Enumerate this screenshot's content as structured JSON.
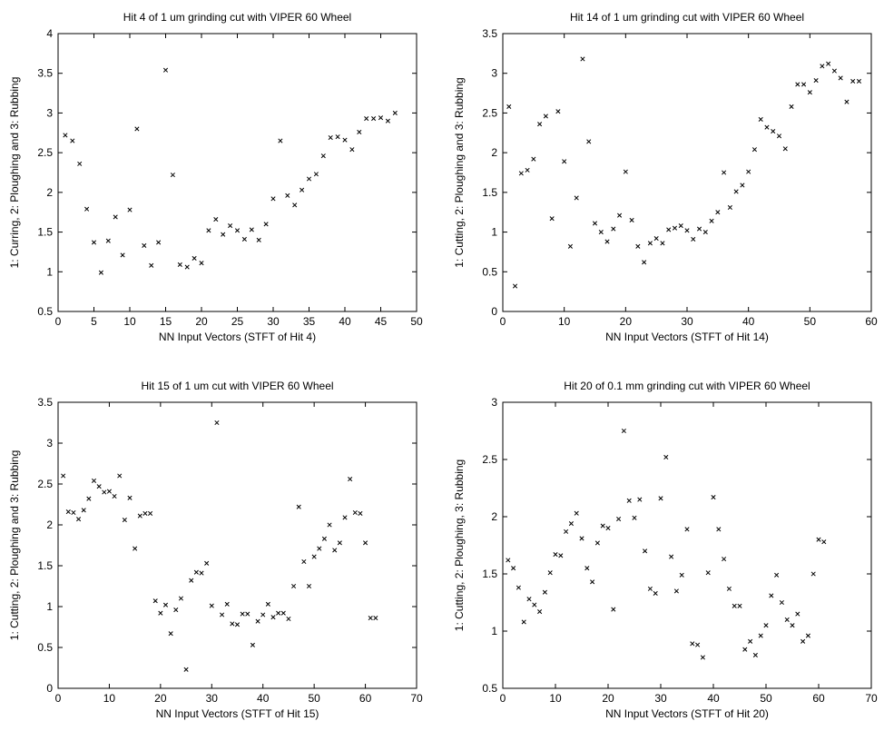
{
  "chart_data": [
    {
      "type": "scatter",
      "title": "Hit 4 of 1 um grinding cut with VIPER 60 Wheel",
      "xlabel": "NN Input Vectors (STFT of Hit 4)",
      "ylabel": "1: Curring, 2: Ploughing and 3: Rubbing",
      "xlim": [
        0,
        50
      ],
      "ylim": [
        0.5,
        4
      ],
      "xticks": [
        "0",
        "5",
        "10",
        "15",
        "20",
        "25",
        "30",
        "35",
        "40",
        "45",
        "50"
      ],
      "yticks": [
        "0.5",
        "1",
        "1.5",
        "2",
        "2.5",
        "3",
        "3.5",
        "4"
      ],
      "x": [
        1,
        2,
        3,
        4,
        5,
        6,
        7,
        8,
        9,
        10,
        11,
        12,
        13,
        14,
        15,
        16,
        17,
        18,
        19,
        20,
        21,
        22,
        23,
        24,
        25,
        26,
        27,
        28,
        29,
        30,
        31,
        32,
        33,
        34,
        35,
        36,
        37,
        38,
        39,
        40,
        41,
        42,
        43,
        44,
        45,
        46,
        47
      ],
      "y": [
        2.72,
        2.65,
        2.36,
        1.79,
        1.37,
        0.99,
        1.39,
        1.69,
        1.21,
        1.78,
        2.8,
        1.33,
        1.08,
        1.37,
        3.54,
        2.22,
        1.09,
        1.06,
        1.17,
        1.11,
        1.52,
        1.66,
        1.47,
        1.58,
        1.52,
        1.41,
        1.53,
        1.4,
        1.6,
        1.92,
        2.65,
        1.96,
        1.84,
        2.03,
        2.17,
        2.23,
        2.46,
        2.69,
        2.7,
        2.66,
        2.54,
        2.76,
        2.93,
        2.93,
        2.94,
        2.9,
        3.0
      ]
    },
    {
      "type": "scatter",
      "title": "Hit 14 of 1 um grinding cut with VIPER 60 Wheel",
      "xlabel": "NN Input Vectors (STFT of Hit 14)",
      "ylabel": "1: Cutting, 2: Ploughing and 3: Rubbing",
      "xlim": [
        0,
        60
      ],
      "ylim": [
        0,
        3.5
      ],
      "xticks": [
        "0",
        "10",
        "20",
        "30",
        "40",
        "50",
        "60"
      ],
      "yticks": [
        "0",
        "0.5",
        "1",
        "1.5",
        "2",
        "2.5",
        "3",
        "3.5"
      ],
      "x": [
        1,
        2,
        3,
        4,
        5,
        6,
        7,
        8,
        9,
        10,
        11,
        12,
        13,
        14,
        15,
        16,
        17,
        18,
        19,
        20,
        21,
        22,
        23,
        24,
        25,
        26,
        27,
        28,
        29,
        30,
        31,
        32,
        33,
        34,
        35,
        36,
        37,
        38,
        39,
        40,
        41,
        42,
        43,
        44,
        45,
        46,
        47,
        48,
        49,
        50,
        51,
        52,
        53,
        54,
        55,
        56,
        57,
        58
      ],
      "y": [
        2.58,
        0.32,
        1.74,
        1.78,
        1.92,
        2.36,
        2.46,
        1.17,
        2.52,
        1.89,
        0.82,
        1.43,
        3.18,
        2.14,
        1.11,
        1.0,
        0.88,
        1.04,
        1.21,
        1.76,
        1.15,
        0.82,
        0.62,
        0.86,
        0.92,
        0.86,
        1.03,
        1.05,
        1.08,
        1.02,
        0.91,
        1.04,
        1.0,
        1.14,
        1.25,
        1.75,
        1.31,
        1.51,
        1.59,
        1.76,
        2.04,
        2.42,
        2.32,
        2.27,
        2.21,
        2.05,
        2.58,
        2.86,
        2.86,
        2.76,
        2.91,
        3.09,
        3.12,
        3.03,
        2.94,
        2.64,
        2.9,
        2.9
      ]
    },
    {
      "type": "scatter",
      "title": "Hit 15 of 1 um cut with VIPER 60 Wheel",
      "xlabel": "NN Input Vectors (STFT of Hit 15)",
      "ylabel": "1: Cutting, 2: Ploughing and 3: Rubbing",
      "xlim": [
        0,
        70
      ],
      "ylim": [
        0,
        3.5
      ],
      "xticks": [
        "0",
        "10",
        "20",
        "30",
        "40",
        "50",
        "60",
        "70"
      ],
      "yticks": [
        "0",
        "0.5",
        "1",
        "1.5",
        "2",
        "2.5",
        "3",
        "3.5"
      ],
      "x": [
        1,
        2,
        3,
        4,
        5,
        6,
        7,
        8,
        9,
        10,
        11,
        12,
        13,
        14,
        15,
        16,
        17,
        18,
        19,
        20,
        21,
        22,
        23,
        24,
        25,
        26,
        27,
        28,
        29,
        30,
        31,
        32,
        33,
        34,
        35,
        36,
        37,
        38,
        39,
        40,
        41,
        42,
        43,
        44,
        45,
        46,
        47,
        48,
        49,
        50,
        51,
        52,
        53,
        54,
        55,
        56,
        57,
        58,
        59,
        60,
        61,
        62
      ],
      "y": [
        2.6,
        2.16,
        2.15,
        2.07,
        2.18,
        2.32,
        2.54,
        2.47,
        2.4,
        2.41,
        2.35,
        2.6,
        2.06,
        2.33,
        1.71,
        2.11,
        2.14,
        2.14,
        1.07,
        0.92,
        1.02,
        0.67,
        0.96,
        1.1,
        0.23,
        1.32,
        1.42,
        1.41,
        1.53,
        1.01,
        3.25,
        0.9,
        1.03,
        0.79,
        0.78,
        0.91,
        0.91,
        0.53,
        0.82,
        0.9,
        1.03,
        0.87,
        0.92,
        0.92,
        0.85,
        1.25,
        2.22,
        1.55,
        1.25,
        1.61,
        1.71,
        1.83,
        2.0,
        1.69,
        1.78,
        2.09,
        2.56,
        2.15,
        2.14,
        1.78,
        0.86,
        0.86
      ]
    },
    {
      "type": "scatter",
      "title": "Hit 20 of 0.1 mm grinding cut with VIPER 60 Wheel",
      "xlabel": "NN Input Vectors (STFT of Hit 20)",
      "ylabel": "1: Cutting, 2: Ploughing, 3: Rubbing",
      "xlim": [
        0,
        70
      ],
      "ylim": [
        0.5,
        3
      ],
      "xticks": [
        "0",
        "10",
        "20",
        "30",
        "40",
        "50",
        "60",
        "70"
      ],
      "yticks": [
        "0.5",
        "1",
        "1.5",
        "2",
        "2.5",
        "3"
      ],
      "x": [
        1,
        2,
        3,
        4,
        5,
        6,
        7,
        8,
        9,
        10,
        11,
        12,
        13,
        14,
        15,
        16,
        17,
        18,
        19,
        20,
        21,
        22,
        23,
        24,
        25,
        26,
        27,
        28,
        29,
        30,
        31,
        32,
        33,
        34,
        35,
        36,
        37,
        38,
        39,
        40,
        41,
        42,
        43,
        44,
        45,
        46,
        47,
        48,
        49,
        50,
        51,
        52,
        53,
        54,
        55,
        56,
        57,
        58,
        59,
        60,
        61
      ],
      "y": [
        1.62,
        1.55,
        1.38,
        1.08,
        1.28,
        1.23,
        1.17,
        1.34,
        1.51,
        1.67,
        1.66,
        1.87,
        1.94,
        2.03,
        1.81,
        1.55,
        1.43,
        1.77,
        1.92,
        1.9,
        1.19,
        1.98,
        2.75,
        2.14,
        1.99,
        2.15,
        1.7,
        1.37,
        1.33,
        2.16,
        2.52,
        1.65,
        1.35,
        1.49,
        1.89,
        0.89,
        0.88,
        0.77,
        1.51,
        2.17,
        1.89,
        1.63,
        1.37,
        1.22,
        1.22,
        0.84,
        0.91,
        0.79,
        0.96,
        1.05,
        1.31,
        1.49,
        1.25,
        1.1,
        1.05,
        1.15,
        0.91,
        0.96,
        1.5,
        1.8,
        1.78
      ]
    }
  ]
}
